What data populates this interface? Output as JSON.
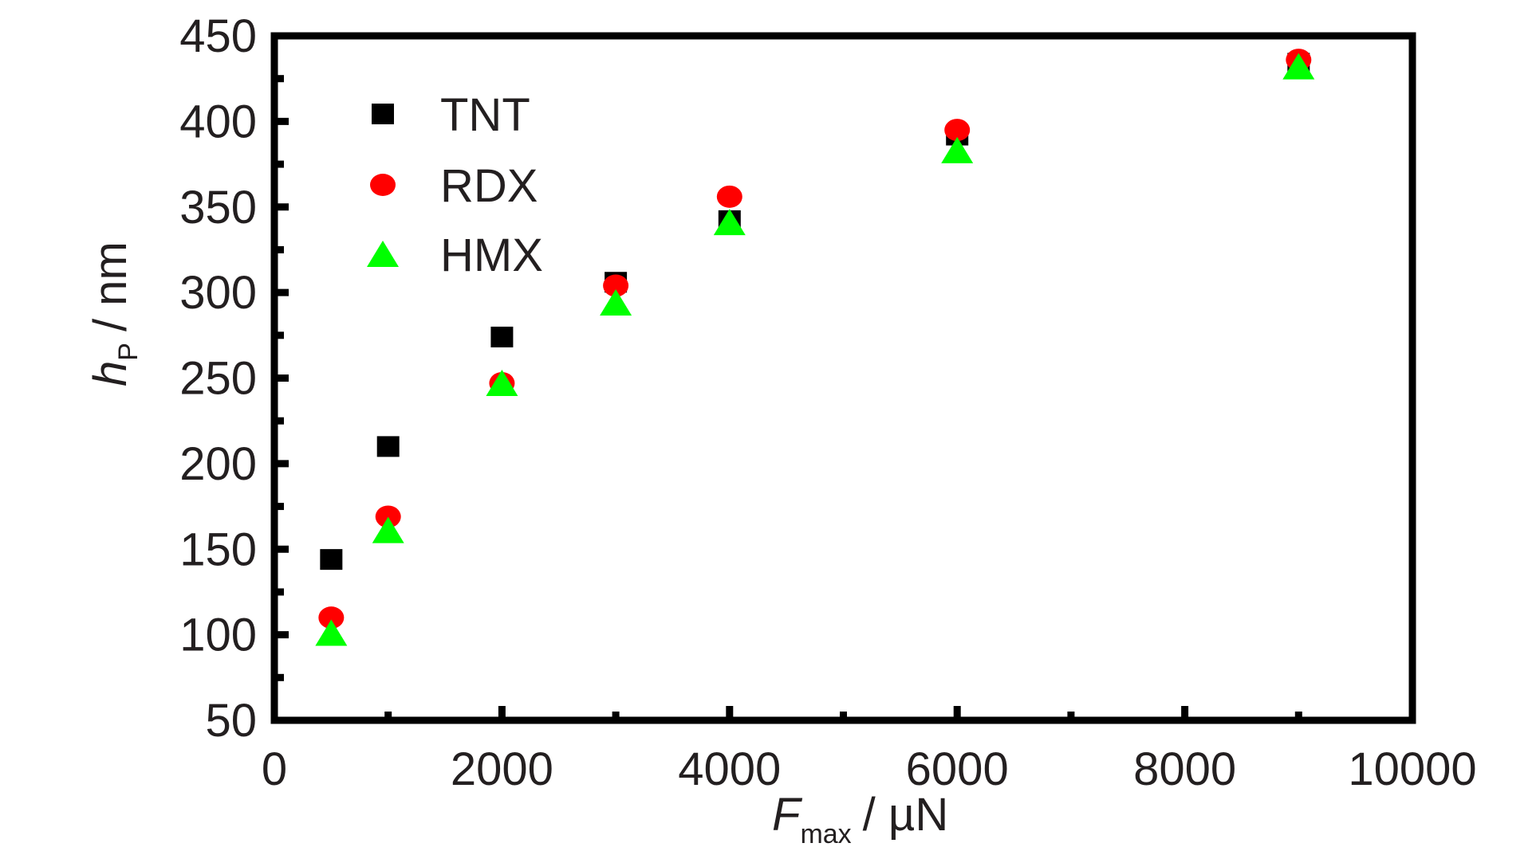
{
  "chart_data": {
    "type": "scatter",
    "xlabel": {
      "main": "F",
      "sub": "max",
      "unit": "/ µN"
    },
    "ylabel": {
      "main": "h",
      "sub": "P",
      "unit": "/ nm"
    },
    "xlim": [
      0,
      10000
    ],
    "ylim": [
      50,
      450
    ],
    "x_ticks": [
      0,
      2000,
      4000,
      6000,
      8000,
      10000
    ],
    "y_ticks": [
      50,
      100,
      150,
      200,
      250,
      300,
      350,
      400,
      450
    ],
    "grid": false,
    "legend_position": "top-left",
    "series": [
      {
        "name": "TNT",
        "marker": "square",
        "color": "#000000",
        "points": [
          [
            500,
            144
          ],
          [
            1000,
            210
          ],
          [
            2000,
            274
          ],
          [
            3000,
            306
          ],
          [
            4000,
            342
          ],
          [
            6000,
            392
          ],
          [
            9000,
            434
          ]
        ]
      },
      {
        "name": "RDX",
        "marker": "circle",
        "color": "#ff0000",
        "points": [
          [
            500,
            110
          ],
          [
            1000,
            169
          ],
          [
            2000,
            247
          ],
          [
            3000,
            304
          ],
          [
            4000,
            356
          ],
          [
            6000,
            395
          ],
          [
            9000,
            436
          ]
        ]
      },
      {
        "name": "HMX",
        "marker": "triangle",
        "color": "#00ff00",
        "points": [
          [
            500,
            101
          ],
          [
            1000,
            161
          ],
          [
            2000,
            247
          ],
          [
            3000,
            294
          ],
          [
            4000,
            341
          ],
          [
            6000,
            383
          ],
          [
            9000,
            432
          ]
        ]
      }
    ]
  }
}
